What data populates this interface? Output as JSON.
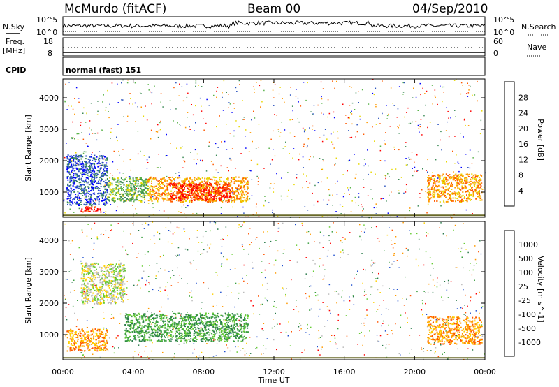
{
  "header": {
    "station": "McMurdo (fitACF)",
    "beam": "Beam 00",
    "date": "04/Sep/2010"
  },
  "top_panels": {
    "nsky_label": "N.Sky",
    "nsearch_label": "N.Search",
    "noise_ticks": [
      "10^5",
      "10^0"
    ],
    "freq_label_1": "Freq.",
    "freq_label_2": "[MHz]",
    "freq_ticks": [
      "18",
      "8"
    ],
    "nave_label": "Nave",
    "nave_ticks": [
      "60",
      "0"
    ],
    "cpid_label": "CPID",
    "cpid_value": "normal (fast) 151"
  },
  "chart_data": [
    {
      "type": "heatmap",
      "id": "power",
      "ylabel": "Slant Range [km]",
      "ylim": [
        200,
        4600
      ],
      "yticks": [
        "1000",
        "2000",
        "3000",
        "4000"
      ],
      "colorbar_label": "Power [dB]",
      "colorbar_ticks": [
        "4",
        "8",
        "12",
        "16",
        "20",
        "24",
        "28"
      ],
      "colors": [
        "#0000ff",
        "#2a52be",
        "#3c8a56",
        "#5ab34a",
        "#e8d800",
        "#ff9900",
        "#ff5a00",
        "#ff0000"
      ],
      "regions": [
        {
          "t0": 0.2,
          "t1": 2.5,
          "r0": 600,
          "r1": 2200,
          "level": 1
        },
        {
          "t0": 2.5,
          "t1": 4.8,
          "r0": 700,
          "r1": 1500,
          "level": 3
        },
        {
          "t0": 4.8,
          "t1": 10.5,
          "r0": 700,
          "r1": 1500,
          "level": 5
        },
        {
          "t0": 6.0,
          "t1": 9.5,
          "r0": 750,
          "r1": 1300,
          "level": 7
        },
        {
          "t0": 20.7,
          "t1": 23.8,
          "r0": 700,
          "r1": 1600,
          "level": 5
        },
        {
          "t0": 1.0,
          "t1": 2.2,
          "r0": 380,
          "r1": 560,
          "level": 7
        }
      ]
    },
    {
      "type": "heatmap",
      "id": "velocity",
      "ylabel": "Slant Range [km]",
      "ylim": [
        200,
        4600
      ],
      "yticks": [
        "1000",
        "2000",
        "3000",
        "4000"
      ],
      "colorbar_label": "Velocity [m s^-1]",
      "colorbar_ticks": [
        "1000",
        "500",
        "100",
        "25",
        "-25",
        "-100",
        "-500",
        "-1000"
      ],
      "colors": [
        "#1f4fcf",
        "#2a7a4a",
        "#3a9f40",
        "#66cc33",
        "#bbbbbb",
        "#ffd000",
        "#ff9900",
        "#ff5500",
        "#ff0000"
      ],
      "regions": [
        {
          "t0": 0.2,
          "t1": 2.5,
          "r0": 500,
          "r1": 1200,
          "level": 6
        },
        {
          "t0": 3.5,
          "t1": 10.5,
          "r0": 800,
          "r1": 1700,
          "level": 2
        },
        {
          "t0": 20.7,
          "t1": 23.8,
          "r0": 700,
          "r1": 1600,
          "level": 6
        },
        {
          "t0": 1.0,
          "t1": 3.5,
          "r0": 2000,
          "r1": 3300,
          "level": 4
        }
      ]
    }
  ],
  "x_axis": {
    "label": "Time UT",
    "ticks": [
      "00:00",
      "04:00",
      "08:00",
      "12:00",
      "16:00",
      "20:00",
      "00:00"
    ]
  }
}
